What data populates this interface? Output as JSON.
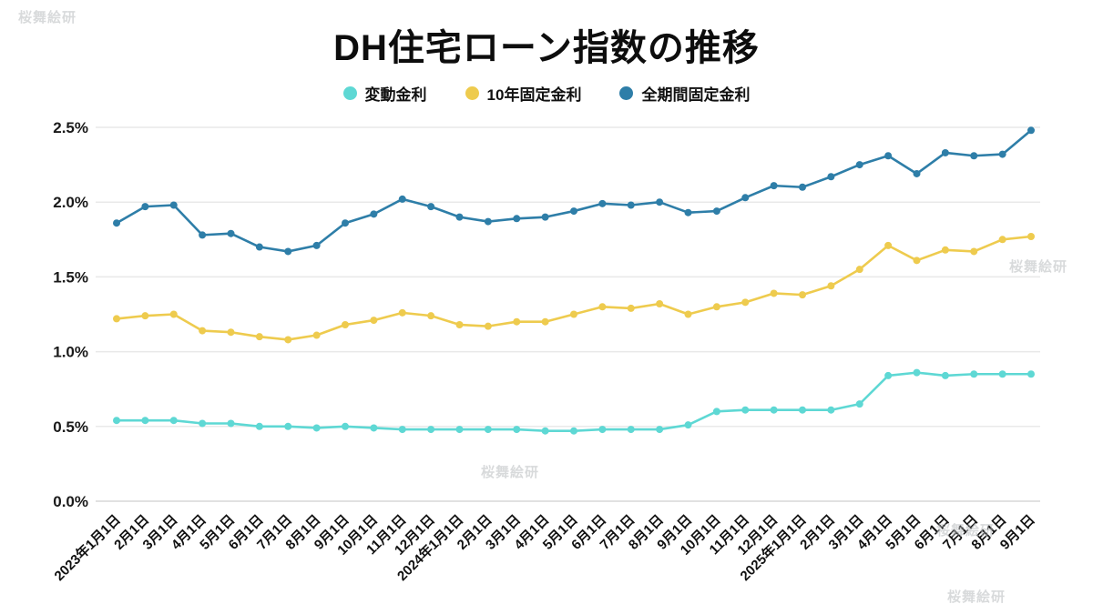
{
  "watermark": {
    "text": "桜舞絵研"
  },
  "chart_data": {
    "type": "line",
    "title": "DH住宅ローン指数の推移",
    "xlabel": "",
    "ylabel": "",
    "ylim": [
      0,
      2.5
    ],
    "yticks": [
      0,
      0.5,
      1.0,
      1.5,
      2.0,
      2.5
    ],
    "ytick_labels": [
      "0.0%",
      "0.5%",
      "1.0%",
      "1.5%",
      "2.0%",
      "2.5%"
    ],
    "grid": "horizontal",
    "legend_position": "top",
    "categories": [
      "2023年1月1日",
      "2月1日",
      "3月1日",
      "4月1日",
      "5月1日",
      "6月1日",
      "7月1日",
      "8月1日",
      "9月1日",
      "10月1日",
      "11月1日",
      "12月1日",
      "2024年1月1日",
      "2月1日",
      "3月1日",
      "4月1日",
      "5月1日",
      "6月1日",
      "7月1日",
      "8月1日",
      "9月1日",
      "10月1日",
      "11月1日",
      "12月1日",
      "2025年1月1日",
      "2月1日",
      "3月1日",
      "4月1日",
      "5月1日",
      "6月1日",
      "7月1日",
      "8月1日",
      "9月1日"
    ],
    "series": [
      {
        "name": "変動金利",
        "color": "#5ed8d4",
        "values": [
          0.54,
          0.54,
          0.54,
          0.52,
          0.52,
          0.5,
          0.5,
          0.49,
          0.5,
          0.49,
          0.48,
          0.48,
          0.48,
          0.48,
          0.48,
          0.47,
          0.47,
          0.48,
          0.48,
          0.48,
          0.51,
          0.6,
          0.61,
          0.61,
          0.61,
          0.61,
          0.65,
          0.84,
          0.86,
          0.84,
          0.85,
          0.85,
          0.85
        ]
      },
      {
        "name": "10年固定金利",
        "color": "#eecb4e",
        "values": [
          1.22,
          1.24,
          1.25,
          1.14,
          1.13,
          1.1,
          1.08,
          1.11,
          1.18,
          1.21,
          1.26,
          1.24,
          1.18,
          1.17,
          1.2,
          1.2,
          1.25,
          1.3,
          1.29,
          1.32,
          1.25,
          1.3,
          1.33,
          1.39,
          1.38,
          1.44,
          1.55,
          1.71,
          1.61,
          1.68,
          1.67,
          1.75,
          1.77
        ]
      },
      {
        "name": "全期間固定金利",
        "color": "#2e7ea8",
        "values": [
          1.86,
          1.97,
          1.98,
          1.78,
          1.79,
          1.7,
          1.67,
          1.71,
          1.86,
          1.92,
          2.02,
          1.97,
          1.9,
          1.87,
          1.89,
          1.9,
          1.94,
          1.99,
          1.98,
          2.0,
          1.93,
          1.94,
          2.03,
          2.11,
          2.1,
          2.17,
          2.25,
          2.31,
          2.19,
          2.33,
          2.31,
          2.32,
          2.48
        ]
      }
    ]
  }
}
